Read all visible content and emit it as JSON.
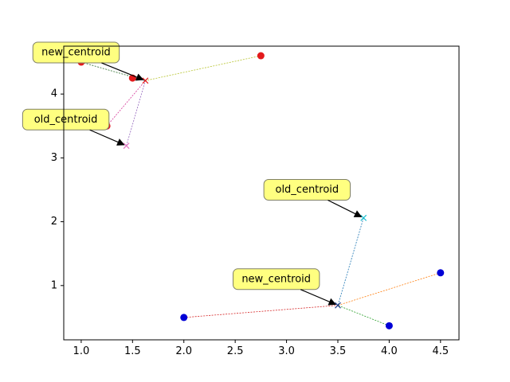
{
  "chart_data": {
    "type": "scatter",
    "title": "",
    "xlabel": "",
    "ylabel": "",
    "xlim": [
      0.83,
      4.68
    ],
    "ylim": [
      0.15,
      4.75
    ],
    "xticks": [
      1.0,
      1.5,
      2.0,
      2.5,
      3.0,
      3.5,
      4.0,
      4.5
    ],
    "yticks": [
      1,
      2,
      3,
      4
    ],
    "xtick_labels": [
      "1.0",
      "1.5",
      "2.0",
      "2.5",
      "3.0",
      "3.5",
      "4.0",
      "4.5"
    ],
    "ytick_labels": [
      "1",
      "2",
      "3",
      "4"
    ],
    "grid": false,
    "legend": "none",
    "clusters": [
      {
        "color": "#e31a1c",
        "points": [
          [
            1.0,
            4.5
          ],
          [
            1.5,
            4.25
          ],
          [
            1.25,
            3.5
          ],
          [
            2.75,
            4.6
          ]
        ],
        "new_centroid": [
          1.625,
          4.21
        ],
        "old_centroid": [
          1.44,
          3.19
        ]
      },
      {
        "color": "#0000d6",
        "points": [
          [
            2.0,
            0.5
          ],
          [
            4.0,
            0.37
          ],
          [
            4.5,
            1.2
          ]
        ],
        "new_centroid": [
          3.5,
          0.69
        ],
        "old_centroid": [
          3.75,
          2.06
        ]
      }
    ],
    "point_to_centroid_lines": [
      {
        "from": [
          1.0,
          4.5
        ],
        "to": [
          1.625,
          4.21
        ],
        "color": "#2f6f2f"
      },
      {
        "from": [
          1.5,
          4.25
        ],
        "to": [
          1.625,
          4.21
        ],
        "color": "#2c4a8c"
      },
      {
        "from": [
          1.25,
          3.5
        ],
        "to": [
          1.625,
          4.21
        ],
        "color": "#d63a9a"
      },
      {
        "from": [
          2.75,
          4.6
        ],
        "to": [
          1.625,
          4.21
        ],
        "color": "#b7c42f"
      },
      {
        "from": [
          2.0,
          0.5
        ],
        "to": [
          3.5,
          0.69
        ],
        "color": "#d62728"
      },
      {
        "from": [
          4.0,
          0.37
        ],
        "to": [
          3.5,
          0.69
        ],
        "color": "#2ca02c"
      },
      {
        "from": [
          4.5,
          1.2
        ],
        "to": [
          3.5,
          0.69
        ],
        "color": "#ff7f0e"
      }
    ],
    "centroid_shift_lines": [
      {
        "from": [
          1.44,
          3.19
        ],
        "to": [
          1.625,
          4.21
        ],
        "color": "#9467bd"
      },
      {
        "from": [
          3.75,
          2.06
        ],
        "to": [
          3.5,
          0.69
        ],
        "color": "#1f77b4"
      }
    ],
    "centroid_markers": [
      {
        "at": [
          1.625,
          4.21
        ],
        "color": "#e31a1c"
      },
      {
        "at": [
          1.44,
          3.19
        ],
        "color": "#e377c2"
      },
      {
        "at": [
          3.5,
          0.69
        ],
        "color": "#1f3a8a"
      },
      {
        "at": [
          3.75,
          2.06
        ],
        "color": "#17becf"
      }
    ],
    "annotations": [
      {
        "text": "new_centroid",
        "target": [
          1.625,
          4.21
        ],
        "text_at": [
          0.95,
          4.65
        ]
      },
      {
        "text": "old_centroid",
        "target": [
          1.44,
          3.19
        ],
        "text_at": [
          0.85,
          3.6
        ]
      },
      {
        "text": "old_centroid",
        "target": [
          3.75,
          2.06
        ],
        "text_at": [
          3.2,
          2.5
        ]
      },
      {
        "text": "new_centroid",
        "target": [
          3.5,
          0.69
        ],
        "text_at": [
          2.9,
          1.1
        ]
      }
    ],
    "annotation_style": {
      "box_fill": "#ffff80",
      "box_stroke": "#808066",
      "arrow_color": "#000000"
    }
  }
}
